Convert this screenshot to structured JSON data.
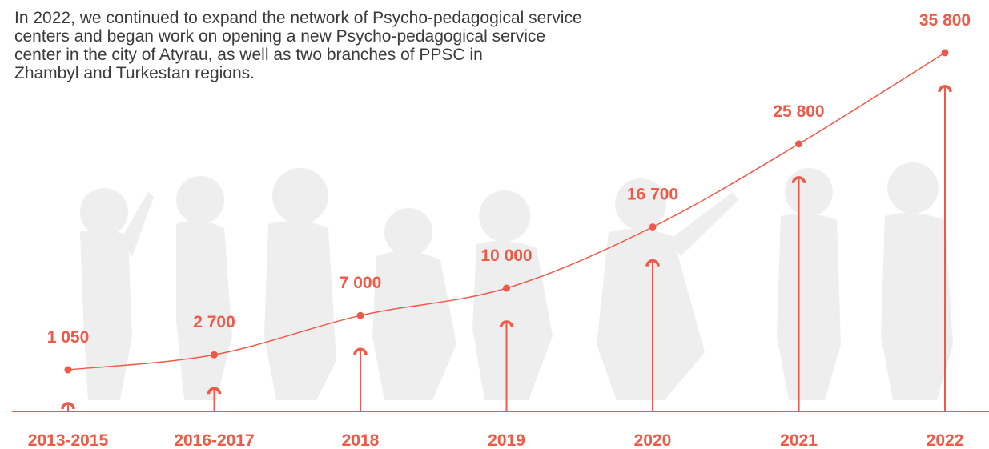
{
  "intro": [
    "In 2022, we continued to expand the network of Psycho-pedagogical service",
    "centers and began work on opening a new Psycho-pedagogical service",
    "center in the city of Atyrau, as well as two branches of PPSC in",
    "Zhambyl and Turkestan regions."
  ],
  "chart_data": {
    "type": "line",
    "color": "#ef5a48",
    "categories": [
      "2013-2015",
      "2016-2017",
      "2018",
      "2019",
      "2020",
      "2021",
      "2022"
    ],
    "values": [
      1050,
      2700,
      7000,
      10000,
      16700,
      25800,
      35800
    ],
    "value_labels": [
      "1 050",
      "2 700",
      "7 000",
      "10 000",
      "16 700",
      "25 800",
      "35 800"
    ]
  }
}
